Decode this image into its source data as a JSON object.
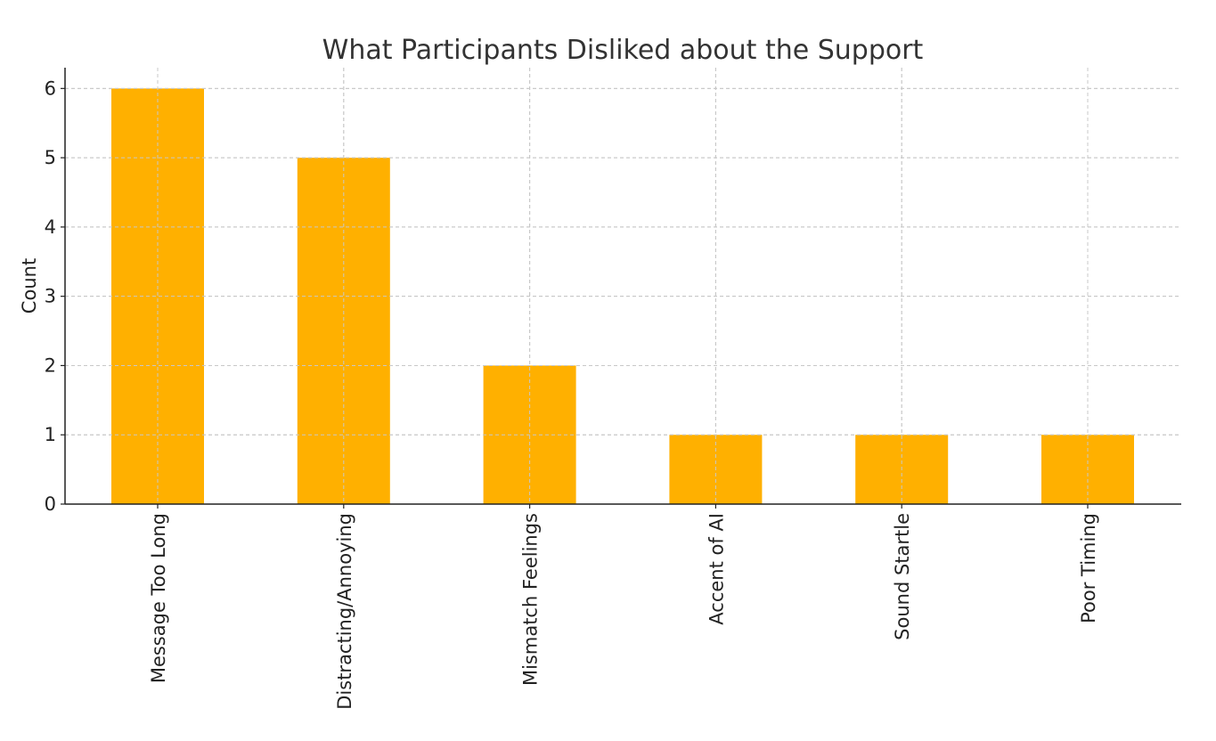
{
  "chart_data": {
    "type": "bar",
    "title": "What Participants Disliked about the Support",
    "xlabel": "",
    "ylabel": "Count",
    "categories": [
      "Message Too Long",
      "Distracting/Annoying",
      "Mismatch Feelings",
      "Accent of AI",
      "Sound Startle",
      "Poor Timing"
    ],
    "values": [
      6,
      5,
      2,
      1,
      1,
      1
    ],
    "ylim": [
      0,
      6.3
    ],
    "yticks": [
      0,
      1,
      2,
      3,
      4,
      5,
      6
    ],
    "grid": true,
    "bar_color": "#FFB000"
  }
}
